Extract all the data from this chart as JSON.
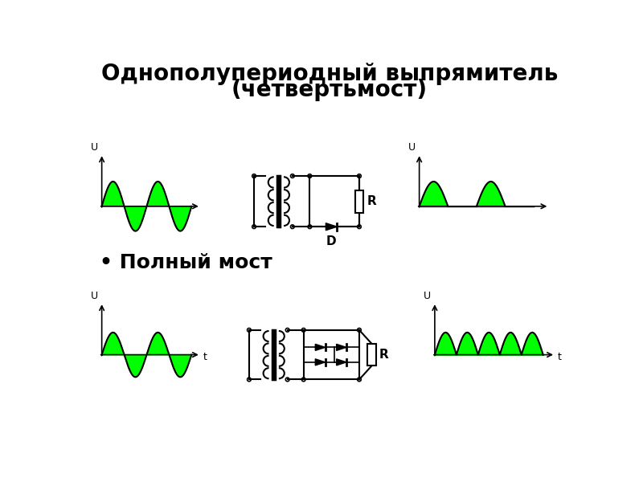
{
  "title_line1": "Однополупериодный выпрямитель",
  "title_line2": "(четвертьмост)",
  "bullet_label": "• Полный мост",
  "green_fill": "#00FF00",
  "black": "#000000",
  "white": "#FFFFFF",
  "bg_color": "#FFFFFF",
  "title_fontsize": 20,
  "bullet_fontsize": 18
}
